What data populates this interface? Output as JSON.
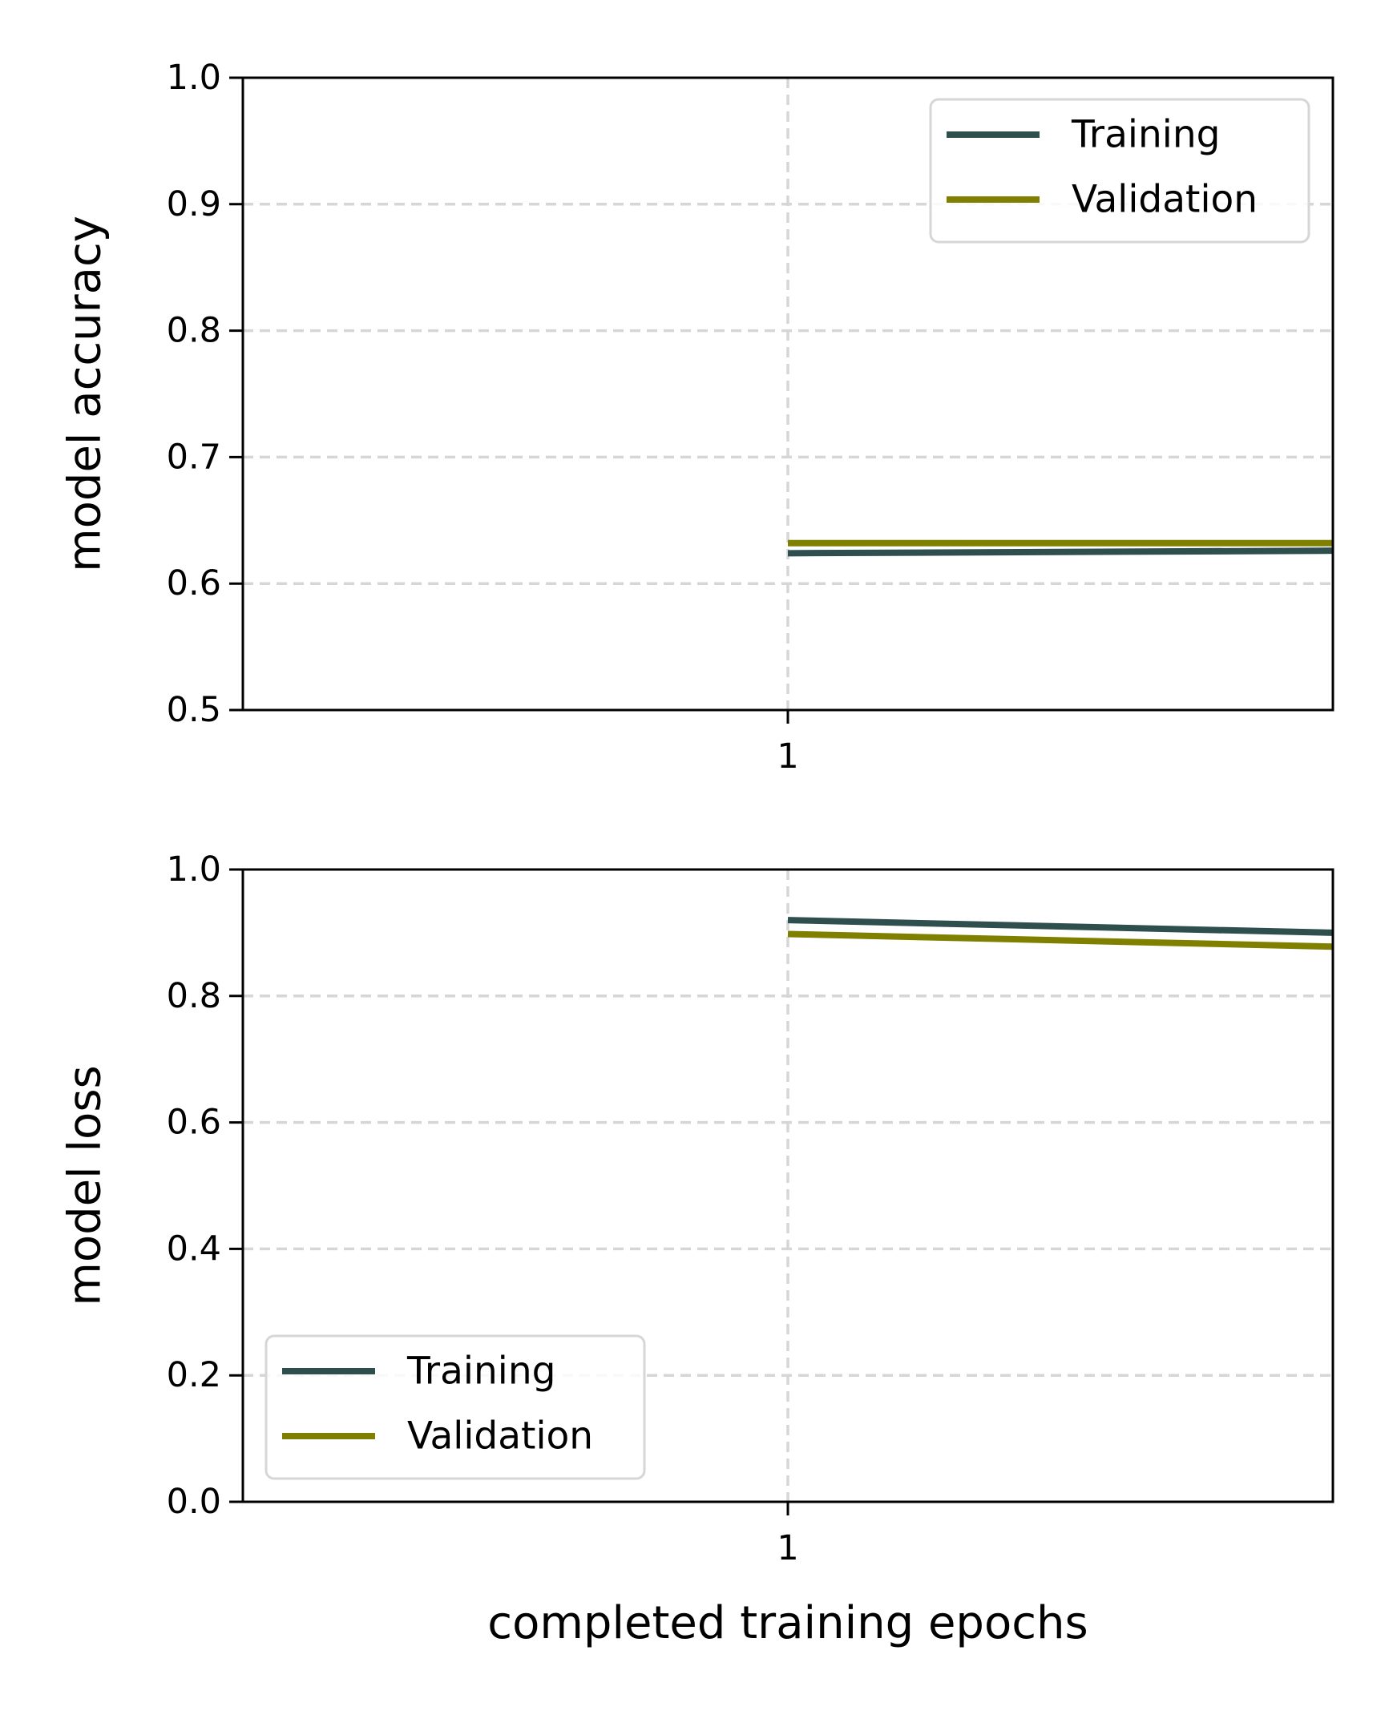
{
  "chart_data": [
    {
      "type": "line",
      "xlabel": "",
      "ylabel": "model accuracy",
      "xlim": [
        0,
        2
      ],
      "ylim": [
        0.5,
        1.0
      ],
      "x_ticks": [
        1
      ],
      "x_tick_labels": [
        "1"
      ],
      "y_ticks": [
        0.5,
        0.6,
        0.7,
        0.8,
        0.9,
        1.0
      ],
      "y_tick_labels": [
        "0.5",
        "0.6",
        "0.7",
        "0.8",
        "0.9",
        "1.0"
      ],
      "grid": true,
      "legend_position": "top-right",
      "series": [
        {
          "name": "Training",
          "color": "#2f4f4f",
          "x": [
            1,
            2
          ],
          "y": [
            0.624,
            0.626
          ]
        },
        {
          "name": "Validation",
          "color": "#808000",
          "x": [
            1,
            2
          ],
          "y": [
            0.632,
            0.632
          ]
        }
      ]
    },
    {
      "type": "line",
      "xlabel": "completed training epochs",
      "ylabel": "model loss",
      "xlim": [
        0,
        2
      ],
      "ylim": [
        0.0,
        1.0
      ],
      "x_ticks": [
        1
      ],
      "x_tick_labels": [
        "1"
      ],
      "y_ticks": [
        0.0,
        0.2,
        0.4,
        0.6,
        0.8,
        1.0
      ],
      "y_tick_labels": [
        "0.0",
        "0.2",
        "0.4",
        "0.6",
        "0.8",
        "1.0"
      ],
      "grid": true,
      "legend_position": "bottom-left",
      "series": [
        {
          "name": "Training",
          "color": "#2f4f4f",
          "x": [
            1,
            2
          ],
          "y": [
            0.92,
            0.9
          ]
        },
        {
          "name": "Validation",
          "color": "#808000",
          "x": [
            1,
            2
          ],
          "y": [
            0.898,
            0.878
          ]
        }
      ]
    }
  ]
}
